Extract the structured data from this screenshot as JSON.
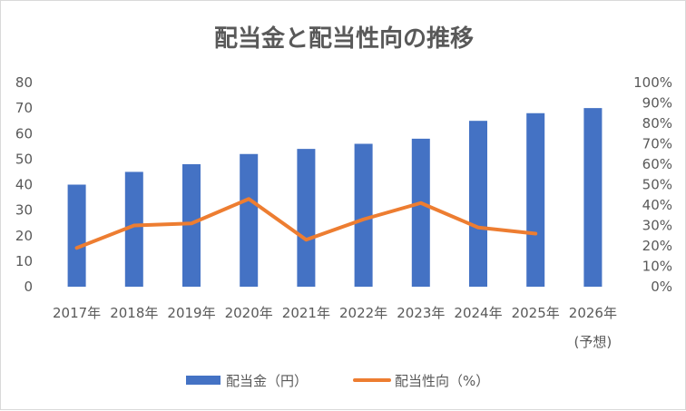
{
  "chart_data": {
    "type": "bar+line",
    "title": "配当金と配当性向の推移",
    "categories": [
      "2017年",
      "2018年",
      "2019年",
      "2020年",
      "2021年",
      "2022年",
      "2023年",
      "2024年",
      "2025年",
      "2026年"
    ],
    "category_sublabels": [
      "",
      "",
      "",
      "",
      "",
      "",
      "",
      "",
      "",
      "(予想)"
    ],
    "series": [
      {
        "name": "配当金（円）",
        "type": "bar",
        "axis": "left",
        "color": "#4472c4",
        "values": [
          40,
          45,
          48,
          52,
          54,
          56,
          58,
          65,
          68,
          70
        ]
      },
      {
        "name": "配当性向（%）",
        "type": "line",
        "axis": "right",
        "color": "#ed7d31",
        "values": [
          19,
          30,
          31,
          43,
          23,
          33,
          41,
          29,
          26,
          null
        ]
      }
    ],
    "y_left": {
      "min": 0,
      "max": 80,
      "step": 10,
      "ticks": [
        "0",
        "10",
        "20",
        "30",
        "40",
        "50",
        "60",
        "70",
        "80"
      ]
    },
    "y_right": {
      "min": 0,
      "max": 100,
      "step": 10,
      "ticks": [
        "0%",
        "10%",
        "20%",
        "30%",
        "40%",
        "50%",
        "60%",
        "70%",
        "80%",
        "90%",
        "100%"
      ]
    },
    "grid": false,
    "legend_position": "bottom"
  }
}
